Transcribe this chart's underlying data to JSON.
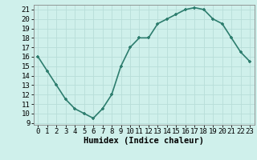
{
  "x": [
    0,
    1,
    2,
    3,
    4,
    5,
    6,
    7,
    8,
    9,
    10,
    11,
    12,
    13,
    14,
    15,
    16,
    17,
    18,
    19,
    20,
    21,
    22,
    23
  ],
  "y": [
    16.0,
    14.5,
    13.0,
    11.5,
    10.5,
    10.0,
    9.5,
    10.5,
    12.0,
    15.0,
    17.0,
    18.0,
    18.0,
    19.5,
    20.0,
    20.5,
    21.0,
    21.2,
    21.0,
    20.0,
    19.5,
    18.0,
    16.5,
    15.5
  ],
  "line_color": "#2d7d6e",
  "marker_color": "#2d7d6e",
  "bg_color": "#cff0eb",
  "grid_color": "#b8ddd8",
  "xlabel": "Humidex (Indice chaleur)",
  "xlim": [
    -0.5,
    23.5
  ],
  "ylim": [
    8.8,
    21.5
  ],
  "yticks": [
    9,
    10,
    11,
    12,
    13,
    14,
    15,
    16,
    17,
    18,
    19,
    20,
    21
  ],
  "xticks": [
    0,
    1,
    2,
    3,
    4,
    5,
    6,
    7,
    8,
    9,
    10,
    11,
    12,
    13,
    14,
    15,
    16,
    17,
    18,
    19,
    20,
    21,
    22,
    23
  ],
  "xlabel_fontsize": 7.5,
  "tick_fontsize": 6.5,
  "line_width": 1.2,
  "marker_size": 3.5
}
